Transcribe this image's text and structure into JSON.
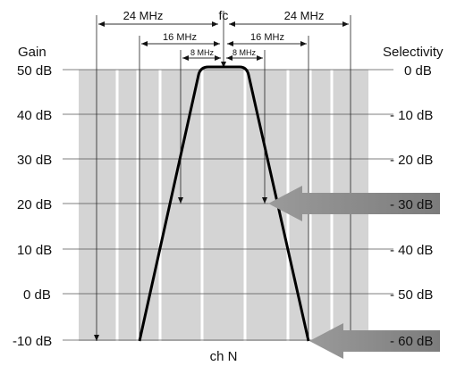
{
  "labels": {
    "gain": "Gain",
    "selectivity": "Selectivity",
    "fc": "fc",
    "channel": "ch N"
  },
  "spans": {
    "outer": "24 MHz",
    "middle": "16 MHz",
    "inner": "8 MHz"
  },
  "gain_ticks": [
    "50 dB",
    "40 dB",
    "30 dB",
    "20 dB",
    "10 dB",
    "0 dB",
    "-10 dB"
  ],
  "selectivity_ticks": [
    "0 dB",
    "- 10 dB",
    "- 20 dB",
    "- 30 dB",
    "- 40 dB",
    "- 50 dB",
    "- 60 dB"
  ],
  "colors": {
    "plot_background": "#d4d4d4",
    "gridline": "#ffffff",
    "curve": "#000000",
    "arrow": "#8c8c8c"
  }
}
